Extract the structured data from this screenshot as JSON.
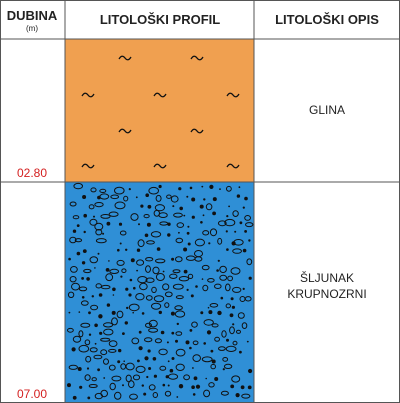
{
  "header": {
    "depth_label": "DUBINA",
    "depth_unit": "(m)",
    "profile_label": "LITOLOŠKI PROFIL",
    "description_label": "LITOLOŠKI OPIS"
  },
  "layers": [
    {
      "depth_bottom": "02.80",
      "description_lines": [
        "GLINA"
      ],
      "pattern": "clay-tilde",
      "fill_color": "#f0a050"
    },
    {
      "depth_bottom": "07.00",
      "description_lines": [
        "ŠLJUNAK",
        "KRUPNOZRNI"
      ],
      "pattern": "gravel-pebbles",
      "fill_color": "#2f8fd6"
    }
  ],
  "colors": {
    "depth_text": "#d42020",
    "grid_line": "#555555",
    "pattern_ink": "#111111"
  }
}
